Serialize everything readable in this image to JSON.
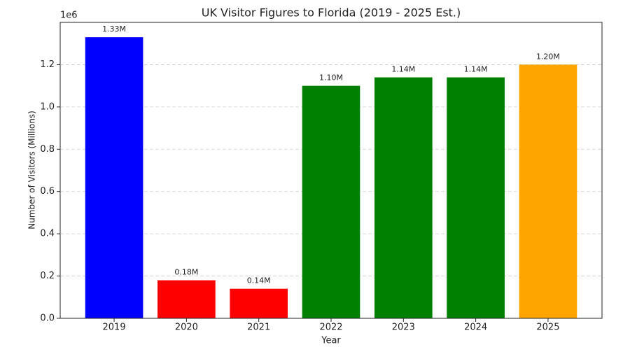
{
  "chart_data": {
    "type": "bar",
    "title": "UK Visitor Figures to Florida (2019 - 2025 Est.)",
    "x_label": "Year",
    "y_label": "Number of Visitors (Millions)",
    "y_offset_label": "1e6",
    "categories": [
      "2019",
      "2020",
      "2021",
      "2022",
      "2023",
      "2024",
      "2025"
    ],
    "values": [
      1330000,
      180000,
      140000,
      1100000,
      1140000,
      1140000,
      1200000
    ],
    "value_labels": [
      "1.33M",
      "0.18M",
      "0.14M",
      "1.10M",
      "1.14M",
      "1.14M",
      "1.20M"
    ],
    "colors": [
      "#0000ff",
      "#ff0000",
      "#ff0000",
      "#008000",
      "#008000",
      "#008000",
      "#ffa500"
    ],
    "ylim": [
      0,
      1400000
    ],
    "yticks": [
      {
        "value": 0,
        "label": "0.0"
      },
      {
        "value": 200000,
        "label": "0.2"
      },
      {
        "value": 400000,
        "label": "0.4"
      },
      {
        "value": 600000,
        "label": "0.6"
      },
      {
        "value": 800000,
        "label": "0.8"
      },
      {
        "value": 1000000,
        "label": "1.0"
      },
      {
        "value": 1200000,
        "label": "1.2"
      }
    ],
    "grid": true
  }
}
